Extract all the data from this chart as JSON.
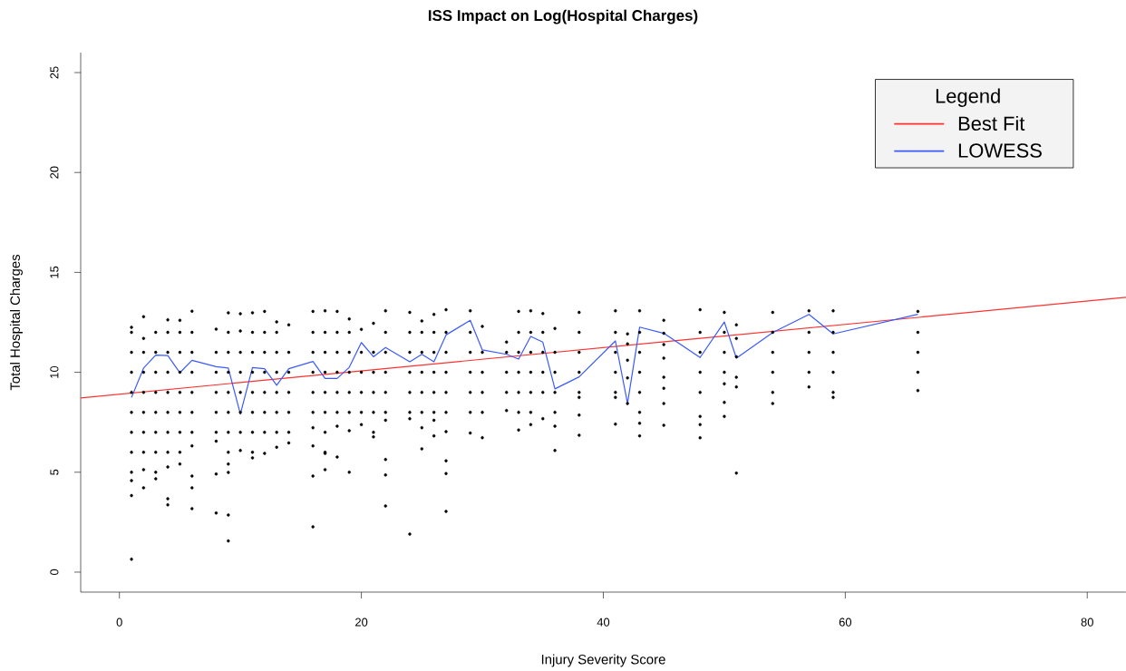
{
  "chart_data": {
    "type": "scatter",
    "title": "ISS Impact on Log(Hospital Charges)",
    "xlabel": "Injury Severity Score",
    "ylabel": "Total Hospital Charges",
    "legend_title": "Legend",
    "xlim": [
      -3.2,
      83.2
    ],
    "ylim": [
      -1,
      26
    ],
    "xticks": [
      0,
      20,
      40,
      60,
      80
    ],
    "yticks": [
      0,
      5,
      10,
      15,
      20,
      25
    ],
    "legend": "top right",
    "series": [
      {
        "color": "#000000",
        "marker": "circle",
        "x": [
          1,
          1,
          1,
          1,
          1,
          1,
          1,
          1,
          1,
          1,
          1,
          1,
          2,
          2,
          2,
          2,
          2,
          2,
          2,
          2,
          2,
          2,
          3,
          3,
          3,
          3,
          3,
          3,
          3,
          3,
          3,
          4,
          4,
          4,
          4,
          4,
          4,
          4,
          4,
          4,
          4,
          4,
          5,
          5,
          5,
          5,
          5,
          5,
          5,
          5,
          5,
          6,
          6,
          6,
          6,
          6,
          6,
          6,
          6,
          6,
          6,
          6,
          8,
          8,
          8,
          8,
          8,
          8,
          8,
          8,
          8,
          9,
          9,
          9,
          9,
          9,
          9,
          9,
          9,
          9,
          9,
          9,
          9,
          10,
          10,
          10,
          10,
          10,
          10,
          10,
          10,
          11,
          11,
          11,
          11,
          11,
          11,
          11,
          11,
          11,
          12,
          12,
          12,
          12,
          12,
          12,
          12,
          12,
          13,
          13,
          13,
          13,
          13,
          13,
          13,
          13,
          14,
          14,
          14,
          14,
          14,
          14,
          14,
          16,
          16,
          16,
          16,
          16,
          16,
          16,
          16,
          16,
          16,
          17,
          17,
          17,
          17,
          17,
          17,
          17,
          17,
          17,
          17,
          18,
          18,
          18,
          18,
          18,
          18,
          18,
          18,
          19,
          19,
          19,
          19,
          19,
          19,
          19,
          19,
          20,
          20,
          20,
          20,
          20,
          20,
          21,
          21,
          21,
          21,
          21,
          21,
          21,
          22,
          22,
          22,
          22,
          22,
          22,
          22,
          22,
          22,
          22,
          24,
          24,
          24,
          24,
          24,
          24,
          24,
          24,
          25,
          25,
          25,
          25,
          25,
          25,
          25,
          25,
          26,
          26,
          26,
          26,
          26,
          26,
          26,
          26,
          27,
          27,
          27,
          27,
          27,
          27,
          27,
          27,
          27,
          27,
          29,
          29,
          29,
          29,
          29,
          29,
          29,
          30,
          30,
          30,
          30,
          30,
          30,
          32,
          32,
          32,
          32,
          32,
          33,
          33,
          33,
          33,
          33,
          33,
          33,
          34,
          34,
          34,
          34,
          34,
          34,
          34,
          35,
          35,
          35,
          35,
          35,
          35,
          36,
          36,
          36,
          36,
          36,
          36,
          36,
          38,
          38,
          38,
          38,
          38,
          38,
          38,
          38,
          41,
          41,
          41,
          41,
          41,
          41,
          41,
          42,
          42,
          42,
          42,
          42,
          43,
          43,
          43,
          43,
          43,
          43,
          43,
          43,
          45,
          45,
          45,
          45,
          45,
          45,
          45,
          45,
          48,
          48,
          48,
          48,
          48,
          48,
          48,
          48,
          50,
          50,
          50,
          50,
          50,
          50,
          50,
          51,
          51,
          51,
          51,
          51,
          51,
          54,
          54,
          54,
          54,
          54,
          54,
          57,
          57,
          57,
          57,
          57,
          59,
          59,
          59,
          59,
          59,
          59,
          66,
          66,
          66,
          66,
          66
        ],
        "values": [
          12.25,
          12,
          11,
          10,
          9,
          8,
          7,
          6,
          5,
          4.58,
          3.83,
          0.65,
          12.78,
          11.7,
          11,
          10,
          9,
          8,
          7,
          6,
          5.13,
          4.22,
          12.0,
          11,
          10,
          9,
          8,
          7,
          6,
          5,
          4.67,
          12.63,
          12,
          11,
          10,
          9,
          8,
          7,
          6,
          5.26,
          3.67,
          3.37,
          12.6,
          12,
          11,
          10,
          9,
          8,
          7,
          6,
          5.41,
          13.06,
          12,
          11,
          10,
          9,
          8,
          7,
          6.32,
          4.81,
          4.22,
          3.18,
          12.16,
          11,
          10,
          9,
          8,
          7,
          6.55,
          4.91,
          2.96,
          12.98,
          12,
          11,
          10,
          9,
          8,
          7,
          6,
          5.41,
          4.99,
          2.86,
          1.56,
          12.93,
          12.07,
          11,
          10,
          9,
          8,
          7,
          6.09,
          12.98,
          12,
          11,
          10,
          9,
          8,
          7,
          6,
          5.72,
          13.05,
          12,
          11,
          10,
          9,
          8,
          7.0,
          5.94,
          12.52,
          12,
          11,
          10,
          9,
          8,
          7,
          6.25,
          12.37,
          11,
          10,
          9,
          8,
          7,
          6.47,
          13.05,
          12,
          11,
          10,
          9,
          8,
          7.23,
          6.32,
          4.81,
          2.27,
          13.08,
          12,
          11,
          10,
          9,
          8,
          7,
          6,
          5.94,
          5.13,
          13.05,
          12,
          11,
          10,
          9,
          8,
          7.3,
          5.76,
          12.67,
          12,
          11,
          10,
          9,
          8,
          7.08,
          5.0,
          12.15,
          11,
          10,
          9,
          8,
          7.38,
          12.45,
          11,
          10,
          9,
          8,
          7,
          6.77,
          13.08,
          12,
          11,
          10,
          9,
          8,
          7.6,
          5.64,
          4.86,
          3.31,
          13.0,
          12,
          11,
          10,
          9,
          8,
          7.68,
          1.9,
          12.57,
          12,
          11,
          10,
          9,
          8,
          7.23,
          6.17,
          12.9,
          12,
          11,
          10,
          9,
          8,
          7.6,
          6.82,
          13.13,
          12,
          11,
          10,
          9,
          8,
          7.03,
          5.57,
          4.93,
          3.04,
          13.08,
          12,
          11,
          10,
          9,
          8,
          6.96,
          12.3,
          11,
          10,
          9,
          8,
          6.73,
          11.51,
          11,
          10,
          9,
          8.09,
          13.05,
          12,
          11,
          10,
          9,
          8,
          7.11,
          13.08,
          12,
          11,
          10,
          9,
          8,
          7.38,
          12.94,
          12,
          11,
          10,
          9,
          7.68,
          12.19,
          11,
          10,
          9,
          8,
          7.3,
          6.09,
          13.0,
          12,
          11,
          10,
          9,
          8.74,
          7.86,
          6.85,
          13.08,
          12,
          11,
          10,
          9,
          8.74,
          7.41,
          11.92,
          11.42,
          10.6,
          9.72,
          8.44,
          13.08,
          12,
          11,
          10,
          9,
          8,
          7.45,
          6.82,
          12.6,
          11.95,
          11.39,
          10.71,
          9.75,
          9.2,
          8.44,
          7.35,
          13.13,
          12,
          11,
          10,
          9.0,
          7.79,
          7.38,
          6.72,
          13.0,
          12,
          11,
          10,
          9.42,
          8.5,
          7.79,
          12.37,
          11.69,
          10.78,
          9.75,
          9.27,
          4.96,
          13.0,
          12,
          11,
          10,
          9,
          8.44,
          13.08,
          12,
          11,
          10,
          9.27,
          13.08,
          12,
          11,
          10,
          9,
          8.74,
          13.05,
          12,
          11,
          10,
          9.09
        ]
      },
      {
        "type": "line",
        "name": "Best Fit",
        "color": "#ff3030",
        "marker": "none",
        "x": [
          -3.2,
          83.2
        ],
        "values": [
          8.72,
          13.75
        ]
      },
      {
        "type": "line",
        "name": "LOWESS",
        "color": "#3a5aff",
        "marker": "none",
        "x": [
          1,
          2,
          3,
          4,
          5,
          6,
          8,
          9,
          10,
          11,
          12,
          13,
          14,
          16,
          17,
          18,
          19,
          20,
          21,
          22,
          24,
          25,
          26,
          27,
          29,
          30,
          32,
          33,
          34,
          35,
          36,
          38,
          41,
          42,
          43,
          45,
          48,
          50,
          51,
          54,
          57,
          59,
          66
        ],
        "values": [
          8.74,
          10.21,
          10.86,
          10.84,
          9.98,
          10.6,
          10.28,
          10.21,
          7.91,
          10.24,
          10.18,
          9.35,
          10.18,
          10.54,
          9.69,
          9.69,
          10.25,
          11.49,
          10.78,
          11.24,
          10.53,
          10.9,
          10.53,
          11.87,
          12.6,
          11.12,
          10.9,
          10.66,
          11.8,
          11.51,
          9.17,
          9.77,
          11.57,
          8.44,
          12.26,
          11.95,
          10.74,
          12.52,
          10.71,
          11.99,
          12.9,
          11.92,
          12.9
        ]
      }
    ]
  }
}
